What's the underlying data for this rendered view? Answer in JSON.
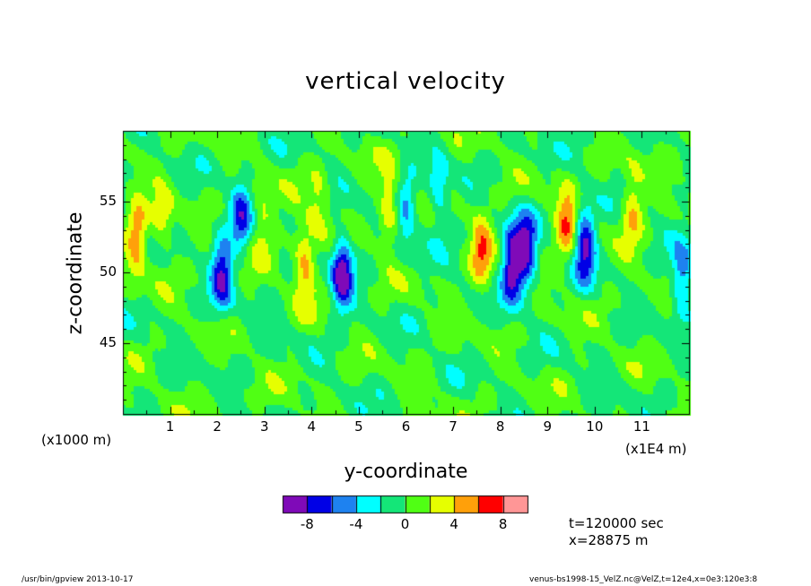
{
  "chart_data": {
    "type": "heatmap",
    "title": "vertical velocity",
    "xlabel": "y-coordinate",
    "ylabel": "z-coordinate",
    "x_unit_label": "(x1000 m)",
    "x_scale_label": "(x1E4 m)",
    "xlim": [
      0,
      12
    ],
    "ylim": [
      40,
      60
    ],
    "x_ticks": [
      "1",
      "2",
      "3",
      "4",
      "5",
      "6",
      "7",
      "8",
      "9",
      "10",
      "11"
    ],
    "y_ticks": [
      "45",
      "50",
      "55"
    ],
    "colorbar": {
      "levels": [
        -10,
        -8,
        -6,
        -4,
        -2,
        0,
        2,
        4,
        6,
        8,
        10
      ],
      "tick_labels": [
        "-8",
        "-4",
        "0",
        "4",
        "8"
      ],
      "colors": [
        "#7f0ab8",
        "#0000e6",
        "#1e82f0",
        "#00ffff",
        "#14e678",
        "#50ff14",
        "#e6ff00",
        "#ffa00a",
        "#ff0000",
        "#ff9696"
      ]
    },
    "background_color": "#23ff4d",
    "features": [
      {
        "kind": "positive",
        "y_center": 0.3,
        "z_center": 52.5,
        "peak": 5.5
      },
      {
        "kind": "positive",
        "y_center": 0.85,
        "z_center": 53.5,
        "peak": 3.2
      },
      {
        "kind": "negative",
        "y_center": 2.1,
        "z_center": 50.0,
        "peak": -7.8
      },
      {
        "kind": "negative",
        "y_center": 2.5,
        "z_center": 54.0,
        "peak": -6.0
      },
      {
        "kind": "positive",
        "y_center": 2.95,
        "z_center": 53.5,
        "peak": 3.2
      },
      {
        "kind": "positive",
        "y_center": 3.85,
        "z_center": 50.5,
        "peak": 5.4
      },
      {
        "kind": "positive",
        "y_center": 4.15,
        "z_center": 55.0,
        "peak": 3.0
      },
      {
        "kind": "negative",
        "y_center": 4.65,
        "z_center": 50.0,
        "peak": -9.5
      },
      {
        "kind": "positive",
        "y_center": 5.65,
        "z_center": 54.5,
        "peak": 4.6
      },
      {
        "kind": "negative",
        "y_center": 6.0,
        "z_center": 54.5,
        "peak": -4.2
      },
      {
        "kind": "negative",
        "y_center": 6.7,
        "z_center": 55.5,
        "peak": -4.0
      },
      {
        "kind": "positive",
        "y_center": 7.6,
        "z_center": 51.5,
        "peak": 5.3
      },
      {
        "kind": "negative",
        "y_center": 8.25,
        "z_center": 50.5,
        "peak": -9.6
      },
      {
        "kind": "negative",
        "y_center": 8.55,
        "z_center": 51.5,
        "peak": -8.5
      },
      {
        "kind": "positive",
        "y_center": 9.4,
        "z_center": 53.5,
        "peak": 5.5
      },
      {
        "kind": "negative",
        "y_center": 9.8,
        "z_center": 52.0,
        "peak": -8.6
      },
      {
        "kind": "positive",
        "y_center": 10.8,
        "z_center": 54.5,
        "peak": 4.5
      },
      {
        "kind": "negative",
        "y_center": 11.85,
        "z_center": 49.5,
        "peak": -6.0
      }
    ]
  },
  "annotations": {
    "time": "t=120000 sec",
    "x_position": "x=28875 m"
  },
  "footer": {
    "left": "/usr/bin/gpview   2013-10-17",
    "right": "venus-bs1998-15_VelZ.nc@VelZ,t=12e4,x=0e3:120e3:8"
  }
}
